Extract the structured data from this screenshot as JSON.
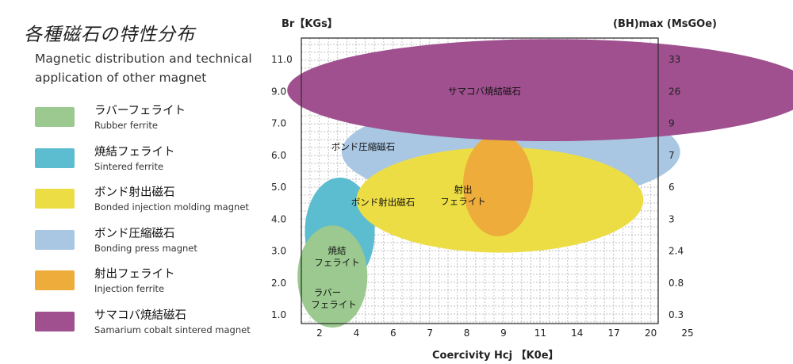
{
  "title_jp": "各種磁石の特性分布",
  "title_en_line1": "Magnetic distribution and technical",
  "title_en_line2": "application of other magnet",
  "legend": [
    {
      "jp": "ラバーフェライト",
      "en": "Rubber ferrite",
      "color": "#9bc98f"
    },
    {
      "jp": "焼結フェライト",
      "en": "Sintered ferrite",
      "color": "#5cbcd0"
    },
    {
      "jp": "ボンド射出磁石",
      "en": "Bonded injection molding magnet",
      "color": "#ecdd45"
    },
    {
      "jp": "ボンド圧縮磁石",
      "en": "Bonding press magnet",
      "color": "#a9c7e3"
    },
    {
      "jp": "射出フェライト",
      "en": "Injection ferrite",
      "color": "#eeac3a"
    },
    {
      "jp": "サマコバ焼結磁石",
      "en": "Samarium cobalt sintered magnet",
      "color": "#a0508f"
    }
  ],
  "chart_data": {
    "type": "scatter",
    "xlabel": "Coercivity  Hcj  【K0e】",
    "ylabel": "Br【KGs】",
    "y2label": "(BH)max (MsGOe)",
    "x_ticks": [
      "2",
      "4",
      "6",
      "7",
      "8",
      "9",
      "11",
      "14",
      "17",
      "20",
      "25"
    ],
    "y_ticks": [
      "1.0",
      "2.0",
      "3.0",
      "4.0",
      "5.0",
      "6.0",
      "7.0",
      "9.0",
      "11.0"
    ],
    "y2_ticks": [
      "0.3",
      "0.8",
      "2.4",
      "3",
      "6",
      "7",
      "9",
      "26",
      "33"
    ],
    "grid": true,
    "note": "Tick labels are categorical (uneven spacing); region centers given as tick-index positions",
    "regions": [
      {
        "name": "ボンド圧縮磁石",
        "color": "#a9c7e3",
        "cx_index": 5.2,
        "cy_index": 5.1,
        "rx_index": 4.6,
        "ry_index": 1.6
      },
      {
        "name": "焼結フェライト",
        "color": "#5cbcd0",
        "cx_index": 0.55,
        "cy_index": 2.6,
        "rx_index": 0.95,
        "ry_index": 1.7
      },
      {
        "name": "ラバーフェライト",
        "color": "#9bc98f",
        "cx_index": 0.35,
        "cy_index": 1.2,
        "rx_index": 0.95,
        "ry_index": 1.6
      },
      {
        "name": "ボンド射出磁石",
        "color": "#ecdd45",
        "cx_index": 4.9,
        "cy_index": 3.6,
        "rx_index": 3.9,
        "ry_index": 1.65
      },
      {
        "name": "射出フェライト",
        "color": "#eeac3a",
        "cx_index": 4.85,
        "cy_index": 4.06,
        "rx_index": 0.95,
        "ry_index": 1.6
      },
      {
        "name": "サマコバ焼結磁石",
        "color": "#a0508f",
        "cx_index": 6.27,
        "cy_index": 7.04,
        "rx_index": 7.15,
        "ry_index": 1.6
      }
    ]
  },
  "region_labels": {
    "press": "ボンド圧縮磁石",
    "sintered_line1": "焼結",
    "sintered_line2": "フェライト",
    "rubber_line1": "ラバー",
    "rubber_line2": "フェライト",
    "injection_magnet": "ボンド射出磁石",
    "injection_ferrite_line1": "射出",
    "injection_ferrite_line2": "フェライト",
    "samarium": "サマコバ焼結磁石"
  }
}
